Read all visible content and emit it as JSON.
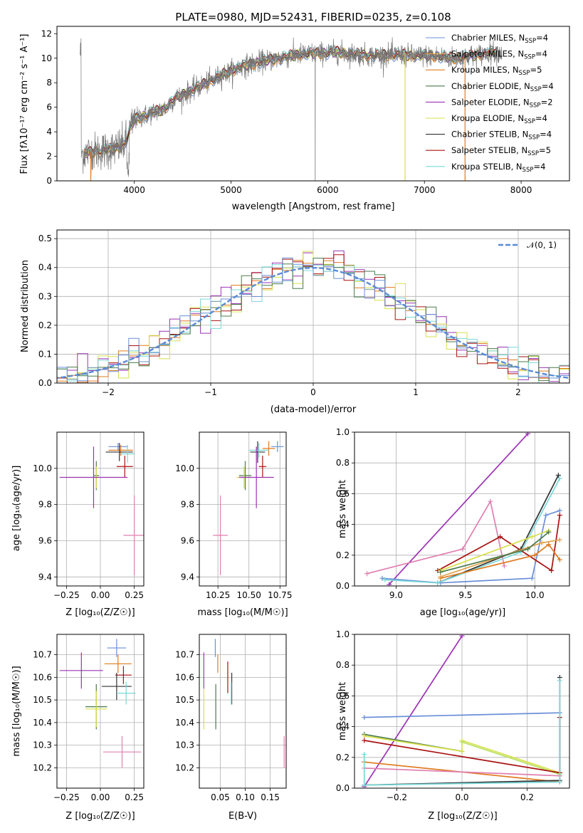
{
  "colors": {
    "miles_chabrier": "#6a8fd8",
    "miles_salpeter": "#e0a04a",
    "miles_kroupa": "#e07a1f",
    "elodie_chabrier": "#4a7a4a",
    "elodie_salpeter": "#9b32b4",
    "elodie_kroupa": "#d8e04a",
    "stelib_chabrier": "#333333",
    "stelib_salpeter": "#aa1111",
    "stelib_kroupa": "#7ad8d8",
    "gauss": "#5b8bd6",
    "pink": "#e07fb0",
    "lime": "#b8e060"
  },
  "chart_data": [
    {
      "id": "spectrum",
      "type": "line",
      "title": "PLATE=0980, MJD=52431, FIBERID=0235, z=0.108",
      "xlabel": "wavelength [Angstrom, rest frame]",
      "ylabel": "Flux [f$_\\lambda$10$^{-17}$ erg cm$^{-2}$ s$^{-1}$ A$^{-1}$]",
      "ylabel_text": "Flux [fλ10⁻¹⁷ erg cm⁻² s⁻¹ A⁻¹]",
      "xlim": [
        3200,
        8500
      ],
      "ylim": [
        0,
        12.6
      ],
      "xticks": [
        4000,
        5000,
        6000,
        7000,
        8000
      ],
      "yticks": [
        0,
        2,
        4,
        6,
        8,
        10,
        12
      ],
      "grid": false,
      "legend_position": "top-right",
      "continuum": {
        "x": [
          3450,
          3600,
          3700,
          3800,
          3900,
          4000,
          4100,
          4200,
          4300,
          4400,
          4500,
          4700,
          4900,
          5100,
          5300,
          5500,
          5700,
          5900,
          6100,
          6300,
          6500,
          6700,
          6900,
          7100,
          7300,
          7500,
          7700
        ],
        "y": [
          2.2,
          2.4,
          2.5,
          2.6,
          3.0,
          5.0,
          5.3,
          5.6,
          5.8,
          6.6,
          7.0,
          7.8,
          8.6,
          9.3,
          9.7,
          10.0,
          10.3,
          10.4,
          10.5,
          10.3,
          10.2,
          10.3,
          10.2,
          10.2,
          10.0,
          10.2,
          10.5
        ]
      },
      "series": [
        {
          "name": "Chabrier MILES, N_SSP=4",
          "name_main": "Chabrier MILES, N",
          "name_sub": "SSP",
          "name_end": "=4",
          "color_key": "miles_chabrier"
        },
        {
          "name": "Salpeter MILES, N_SSP=4",
          "name_main": "Salpeter MILES, N",
          "name_sub": "SSP",
          "name_end": "=4",
          "color_key": "miles_salpeter"
        },
        {
          "name": "Kroupa MILES, N_SSP=5",
          "name_main": "Kroupa MILES, N",
          "name_sub": "SSP",
          "name_end": "=5",
          "color_key": "miles_kroupa"
        },
        {
          "name": "Chabrier ELODIE, N_SSP=4",
          "name_main": "Chabrier ELODIE, N",
          "name_sub": "SSP",
          "name_end": "=4",
          "color_key": "elodie_chabrier"
        },
        {
          "name": "Salpeter ELODIE, N_SSP=2",
          "name_main": "Salpeter ELODIE, N",
          "name_sub": "SSP",
          "name_end": "=2",
          "color_key": "elodie_salpeter"
        },
        {
          "name": "Kroupa ELODIE, N_SSP=4",
          "name_main": "Kroupa ELODIE, N",
          "name_sub": "SSP",
          "name_end": "=4",
          "color_key": "elodie_kroupa"
        },
        {
          "name": "Chabrier STELIB, N_SSP=4",
          "name_main": "Chabrier STELIB, N",
          "name_sub": "SSP",
          "name_end": "=4",
          "color_key": "stelib_chabrier"
        },
        {
          "name": "Salpeter STELIB, N_SSP=5",
          "name_main": "Salpeter STELIB, N",
          "name_sub": "SSP",
          "name_end": "=5",
          "color_key": "stelib_salpeter"
        },
        {
          "name": "Kroupa STELIB, N_SSP=4",
          "name_main": "Kroupa STELIB, N",
          "name_sub": "SSP",
          "name_end": "=4",
          "color_key": "stelib_kroupa"
        }
      ]
    },
    {
      "id": "residuals",
      "type": "histogram",
      "xlabel": "(data-model)/error",
      "ylabel": "Normed distribution",
      "xlim": [
        -2.5,
        2.5
      ],
      "ylim": [
        0,
        0.53
      ],
      "xticks": [
        -2,
        -1,
        0,
        1,
        2
      ],
      "xticklabels": [
        "−2",
        "−1",
        "0",
        "1",
        "2"
      ],
      "yticks": [
        0.0,
        0.1,
        0.2,
        0.3,
        0.4,
        0.5
      ],
      "yticklabels": [
        "0.0",
        "0.1",
        "0.2",
        "0.3",
        "0.4",
        "0.5"
      ],
      "grid": true,
      "legend_position": "top-right",
      "legend_label": "𝒩(0, 1)",
      "bin_width": 0.1,
      "reference": {
        "name": "𝒩(0, 1)",
        "mean": 0,
        "sigma": 1
      }
    },
    {
      "id": "z-age",
      "type": "scatter",
      "xlabel": "Z [log₁₀(Z/Z☉)]",
      "ylabel": "age  [log₁₀(age/yr)]",
      "xlim": [
        -0.32,
        0.32
      ],
      "ylim": [
        9.35,
        10.2
      ],
      "xticks": [
        -0.25,
        0.0,
        0.25
      ],
      "xticklabels": [
        "−0.25",
        "0.00",
        "0.25"
      ],
      "yticks": [
        9.4,
        9.6,
        9.8,
        10.0
      ],
      "yticklabels": [
        "9.4",
        "9.6",
        "9.8",
        "10.0"
      ],
      "grid": true,
      "points": [
        {
          "c": "miles_chabrier",
          "x": 0.13,
          "xerr": 0.07,
          "y": 10.12,
          "yerr": 0.02
        },
        {
          "c": "miles_kroupa",
          "x": 0.15,
          "xerr": 0.09,
          "y": 10.1,
          "yerr": 0.03
        },
        {
          "c": "stelib_chabrier",
          "x": 0.14,
          "xerr": 0.1,
          "y": 10.09,
          "yerr": 0.05
        },
        {
          "c": "stelib_kroupa",
          "x": 0.2,
          "xerr": 0.05,
          "y": 10.08,
          "yerr": 0.05
        },
        {
          "c": "stelib_salpeter",
          "x": 0.18,
          "xerr": 0.06,
          "y": 10.01,
          "yerr": 0.06
        },
        {
          "c": "elodie_chabrier",
          "x": -0.03,
          "xerr": 0.02,
          "y": 9.96,
          "yerr": 0.08
        },
        {
          "c": "elodie_kroupa",
          "x": -0.03,
          "xerr": 0.02,
          "y": 9.95,
          "yerr": 0.06
        },
        {
          "c": "elodie_salpeter",
          "x": -0.05,
          "xerr": 0.25,
          "y": 9.95,
          "yerr": 0.17
        },
        {
          "c": "pink",
          "x": 0.25,
          "xerr": 0.08,
          "y": 9.63,
          "yerr": 0.22
        }
      ]
    },
    {
      "id": "mass-age",
      "type": "scatter",
      "xlabel": "mass [log₁₀(M/M☉)]",
      "ylabel": "",
      "xlim": [
        10.1,
        10.8
      ],
      "ylim": [
        9.35,
        10.2
      ],
      "xticks": [
        10.25,
        10.5,
        10.75
      ],
      "xticklabels": [
        "10.25",
        "10.50",
        "10.75"
      ],
      "yticks": [
        9.4,
        9.6,
        9.8,
        10.0
      ],
      "yticklabels": [
        "9.4",
        "9.6",
        "9.8",
        "10.0"
      ],
      "grid": true,
      "points": [
        {
          "c": "miles_chabrier",
          "x": 10.73,
          "xerr": 0.05,
          "y": 10.12,
          "yerr": 0.03
        },
        {
          "c": "miles_kroupa",
          "x": 10.66,
          "xerr": 0.05,
          "y": 10.11,
          "yerr": 0.04
        },
        {
          "c": "stelib_chabrier",
          "x": 10.57,
          "xerr": 0.06,
          "y": 10.09,
          "yerr": 0.06
        },
        {
          "c": "stelib_kroupa",
          "x": 10.58,
          "xerr": 0.08,
          "y": 10.1,
          "yerr": 0.04
        },
        {
          "c": "stelib_salpeter",
          "x": 10.61,
          "xerr": 0.03,
          "y": 10.01,
          "yerr": 0.06
        },
        {
          "c": "elodie_chabrier",
          "x": 10.47,
          "xerr": 0.05,
          "y": 9.96,
          "yerr": 0.08
        },
        {
          "c": "elodie_kroupa",
          "x": 10.46,
          "xerr": 0.06,
          "y": 9.95,
          "yerr": 0.06
        },
        {
          "c": "elodie_salpeter",
          "x": 10.56,
          "xerr": 0.14,
          "y": 9.95,
          "yerr": 0.17
        },
        {
          "c": "pink",
          "x": 10.27,
          "xerr": 0.06,
          "y": 9.63,
          "yerr": 0.22
        }
      ]
    },
    {
      "id": "age-weight",
      "type": "line",
      "xlabel": "age  [log₁₀(age/yr)]",
      "ylabel": "mass weight",
      "xlim": [
        8.7,
        10.25
      ],
      "ylim": [
        0,
        1.0
      ],
      "xticks": [
        9.0,
        9.5,
        10.0
      ],
      "xticklabels": [
        "9.0",
        "9.5",
        "10.0"
      ],
      "yticks": [
        0.0,
        0.2,
        0.4,
        0.6,
        0.8,
        1.0
      ],
      "yticklabels": [
        "0.0",
        "0.2",
        "0.4",
        "0.6",
        "0.8",
        "1.0"
      ],
      "grid": true,
      "series": [
        {
          "c": "elodie_salpeter",
          "x": [
            8.95,
            9.95
          ],
          "y": [
            0.01,
            0.99
          ]
        },
        {
          "c": "pink",
          "x": [
            8.79,
            9.48,
            9.68,
            9.78
          ],
          "y": [
            0.08,
            0.24,
            0.55,
            0.13
          ]
        },
        {
          "c": "miles_chabrier",
          "x": [
            8.9,
            9.32,
            9.98,
            10.08,
            10.18
          ],
          "y": [
            0.05,
            0.02,
            0.05,
            0.46,
            0.49
          ]
        },
        {
          "c": "stelib_chabrier",
          "x": [
            9.3,
            9.9,
            10.17
          ],
          "y": [
            0.02,
            0.24,
            0.72
          ]
        },
        {
          "c": "stelib_kroupa",
          "x": [
            8.92,
            9.3,
            9.9,
            10.18
          ],
          "y": [
            0.04,
            0.02,
            0.22,
            0.7
          ]
        },
        {
          "c": "stelib_salpeter",
          "x": [
            9.3,
            9.75,
            10.12,
            10.18
          ],
          "y": [
            0.1,
            0.32,
            0.1,
            0.46
          ]
        },
        {
          "c": "miles_kroupa",
          "x": [
            9.32,
            10.0,
            10.1,
            10.18
          ],
          "y": [
            0.05,
            0.2,
            0.27,
            0.17
          ]
        },
        {
          "c": "miles_salpeter",
          "x": [
            9.32,
            10.05,
            10.18
          ],
          "y": [
            0.06,
            0.28,
            0.3
          ]
        },
        {
          "c": "elodie_kroupa",
          "x": [
            9.32,
            9.98,
            10.1
          ],
          "y": [
            0.1,
            0.32,
            0.36
          ]
        },
        {
          "c": "elodie_chabrier",
          "x": [
            9.32,
            9.95,
            10.1
          ],
          "y": [
            0.09,
            0.24,
            0.35
          ]
        }
      ]
    },
    {
      "id": "z-mass",
      "type": "scatter",
      "xlabel": "Z [log₁₀(Z/Z☉)]",
      "ylabel": "mass [log₁₀(M/M☉)]",
      "xlim": [
        -0.32,
        0.32
      ],
      "ylim": [
        10.11,
        10.79
      ],
      "xticks": [
        -0.25,
        0.0,
        0.25
      ],
      "xticklabels": [
        "−0.25",
        "0.00",
        "0.25"
      ],
      "yticks": [
        10.2,
        10.3,
        10.4,
        10.5,
        10.6,
        10.7
      ],
      "yticklabels": [
        "10.2",
        "10.3",
        "10.4",
        "10.5",
        "10.6",
        "10.7"
      ],
      "grid": true,
      "points": [
        {
          "c": "miles_chabrier",
          "x": 0.12,
          "xerr": 0.07,
          "y": 10.73,
          "yerr": 0.04
        },
        {
          "c": "miles_kroupa",
          "x": 0.13,
          "xerr": 0.1,
          "y": 10.66,
          "yerr": 0.04
        },
        {
          "c": "elodie_salpeter",
          "x": -0.14,
          "xerr": 0.16,
          "y": 10.63,
          "yerr": 0.08
        },
        {
          "c": "stelib_salpeter",
          "x": 0.17,
          "xerr": 0.06,
          "y": 10.61,
          "yerr": 0.04
        },
        {
          "c": "stelib_chabrier",
          "x": 0.12,
          "xerr": 0.11,
          "y": 10.56,
          "yerr": 0.06
        },
        {
          "c": "stelib_kroupa",
          "x": 0.19,
          "xerr": 0.07,
          "y": 10.53,
          "yerr": 0.05
        },
        {
          "c": "elodie_chabrier",
          "x": -0.03,
          "xerr": 0.08,
          "y": 10.47,
          "yerr": 0.1
        },
        {
          "c": "elodie_kroupa",
          "x": -0.03,
          "xerr": 0.08,
          "y": 10.46,
          "yerr": 0.08
        },
        {
          "c": "pink",
          "x": 0.16,
          "xerr": 0.14,
          "y": 10.27,
          "yerr": 0.07
        }
      ]
    },
    {
      "id": "ebv-mass",
      "type": "scatter",
      "xlabel": "E(B-V)",
      "ylabel": "",
      "xlim": [
        0.008,
        0.182
      ],
      "ylim": [
        10.11,
        10.79
      ],
      "xticks": [
        0.05,
        0.1,
        0.15
      ],
      "xticklabels": [
        "0.05",
        "0.10",
        "0.15"
      ],
      "yticks": [
        10.2,
        10.3,
        10.4,
        10.5,
        10.6,
        10.7
      ],
      "yticklabels": [
        "10.2",
        "10.3",
        "10.4",
        "10.5",
        "10.6",
        "10.7"
      ],
      "grid": true,
      "points": [
        {
          "c": "miles_chabrier",
          "x": 0.04,
          "xerr": 0,
          "y": 10.73,
          "yerr": 0.04
        },
        {
          "c": "miles_kroupa",
          "x": 0.045,
          "xerr": 0,
          "y": 10.66,
          "yerr": 0.04
        },
        {
          "c": "elodie_salpeter",
          "x": 0.017,
          "xerr": 0,
          "y": 10.63,
          "yerr": 0.08
        },
        {
          "c": "stelib_salpeter",
          "x": 0.065,
          "xerr": 0,
          "y": 10.6,
          "yerr": 0.07
        },
        {
          "c": "stelib_chabrier",
          "x": 0.073,
          "xerr": 0,
          "y": 10.55,
          "yerr": 0.07
        },
        {
          "c": "stelib_kroupa",
          "x": 0.072,
          "xerr": 0,
          "y": 10.53,
          "yerr": 0.05
        },
        {
          "c": "elodie_chabrier",
          "x": 0.041,
          "xerr": 0,
          "y": 10.47,
          "yerr": 0.1
        },
        {
          "c": "elodie_kroupa",
          "x": 0.017,
          "xerr": 0,
          "y": 10.46,
          "yerr": 0.09
        },
        {
          "c": "pink",
          "x": 0.178,
          "xerr": 0,
          "y": 10.27,
          "yerr": 0.07
        }
      ]
    },
    {
      "id": "z-weight",
      "type": "line",
      "xlabel": "Z [log₁₀(Z/Z☉)]",
      "ylabel": "mass weight",
      "xlim": [
        -0.33,
        0.33
      ],
      "ylim": [
        0,
        1.0
      ],
      "xticks": [
        -0.2,
        0.0,
        0.2
      ],
      "xticklabels": [
        "−0.2",
        "0.0",
        "0.2"
      ],
      "yticks": [
        0.0,
        0.2,
        0.4,
        0.6,
        0.8,
        1.0
      ],
      "yticklabels": [
        "0.0",
        "0.2",
        "0.4",
        "0.6",
        "0.8",
        "1.0"
      ],
      "grid": true,
      "series": [
        {
          "c": "elodie_salpeter",
          "x": [
            -0.3,
            0.0
          ],
          "y": [
            0.01,
            0.99
          ]
        },
        {
          "c": "miles_chabrier",
          "x": [
            -0.3,
            0.3
          ],
          "y": [
            0.46,
            0.49
          ]
        },
        {
          "c": "elodie_chabrier",
          "x": [
            -0.3,
            0.0
          ],
          "y": [
            0.35,
            0.24
          ]
        },
        {
          "c": "elodie_kroupa",
          "x": [
            -0.3,
            0.0,
            0.0,
            0.3
          ],
          "y": [
            0.34,
            0.24,
            0.31,
            0.1
          ]
        },
        {
          "c": "lime",
          "x": [
            0.0,
            0.3
          ],
          "y": [
            0.3,
            0.09
          ]
        },
        {
          "c": "miles_kroupa",
          "x": [
            -0.3,
            0.3
          ],
          "y": [
            0.17,
            0.04
          ]
        },
        {
          "c": "stelib_salpeter",
          "x": [
            -0.3,
            0.3,
            0.3
          ],
          "y": [
            0.31,
            0.1,
            0.46
          ]
        },
        {
          "c": "pink",
          "x": [
            -0.3,
            0.3
          ],
          "y": [
            0.13,
            0.08
          ]
        },
        {
          "c": "stelib_chabrier",
          "x": [
            -0.3,
            0.3,
            0.3
          ],
          "y": [
            0.02,
            0.05,
            0.72
          ]
        },
        {
          "c": "stelib_kroupa",
          "x": [
            -0.3,
            -0.3,
            0.3,
            0.3
          ],
          "y": [
            0.22,
            0.02,
            0.04,
            0.7
          ]
        }
      ]
    }
  ]
}
